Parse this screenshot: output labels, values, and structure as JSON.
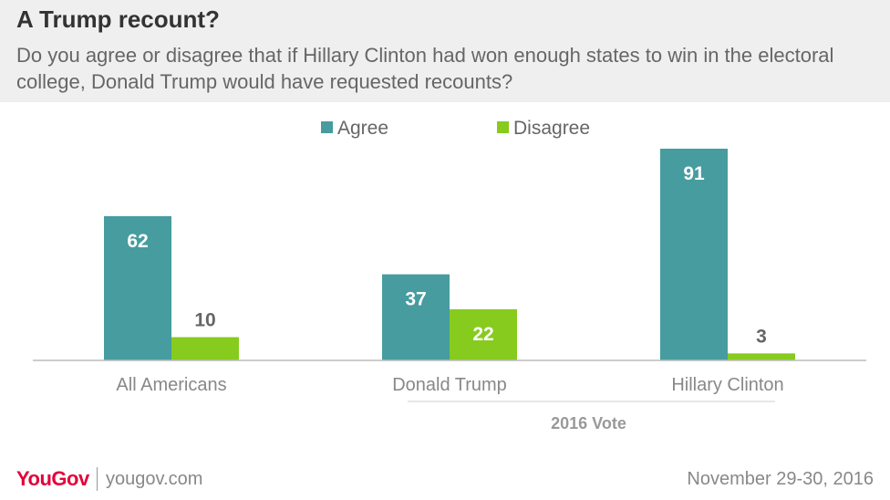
{
  "header": {
    "title": "A Trump recount?",
    "subtitle": "Do you agree or disagree that if Hillary Clinton had won enough states to win in the electoral college, Donald Trump would have requested recounts?"
  },
  "chart_data": {
    "type": "bar",
    "categories": [
      "All Americans",
      "Donald Trump",
      "Hillary Clinton"
    ],
    "series": [
      {
        "name": "Agree",
        "values": [
          62,
          37,
          91
        ],
        "color": "#469c9f"
      },
      {
        "name": "Disagree",
        "values": [
          10,
          22,
          3
        ],
        "color": "#87cb1f"
      }
    ],
    "group_label": "2016 Vote",
    "group_label_categories": [
      "Donald Trump",
      "Hillary Clinton"
    ],
    "ylim": [
      0,
      100
    ],
    "grid": false,
    "legend_position": "top-center"
  },
  "footer": {
    "brand": "YouGov",
    "site": "yougov.com",
    "date": "November 29-30, 2016"
  }
}
